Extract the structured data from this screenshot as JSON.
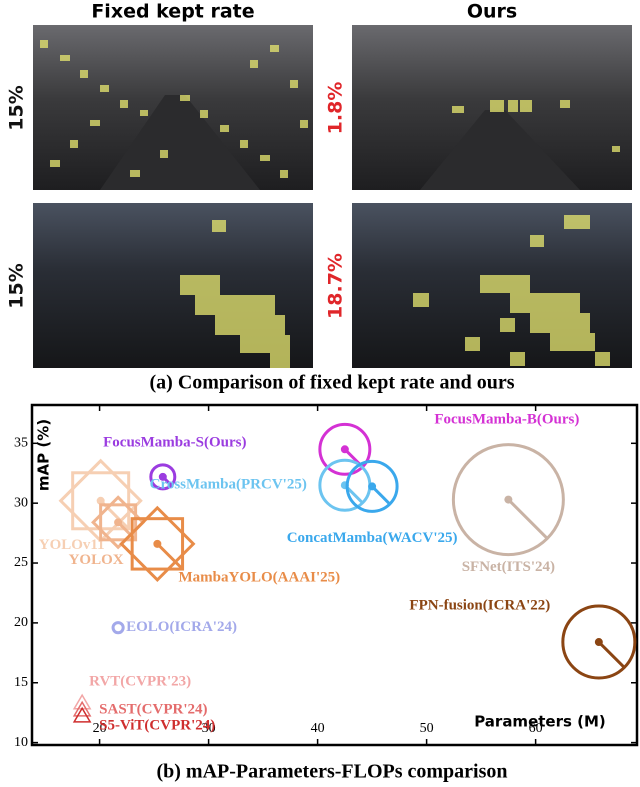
{
  "panel_a": {
    "columns": [
      "Fixed kept rate",
      "Ours"
    ],
    "rows": [
      {
        "rates": [
          "15%",
          "1.8%"
        ]
      },
      {
        "rates": [
          "15%",
          "18.7%"
        ]
      }
    ],
    "caption": "(a) Comparison of fixed kept rate and ours"
  },
  "chart_data": {
    "type": "bubble",
    "caption": "(b) mAP-Parameters-FLOPs comparison",
    "xlabel": "Parameters (M)",
    "ylabel": "mAP (%)",
    "xlim": [
      13.8,
      69.3
    ],
    "ylim": [
      9.8,
      38.2
    ],
    "xticks": [
      20,
      30,
      40,
      50,
      60
    ],
    "yticks": [
      10,
      15,
      20,
      25,
      30,
      35
    ],
    "grid": false,
    "series": [
      {
        "name": "FocusMamba-S(Ours)",
        "color": "#9b3ce0",
        "marker": "o",
        "x": [
          25.8
        ],
        "values": [
          32.2
        ],
        "sizes": [
          9
        ]
      },
      {
        "name": "FocusMamba-B(Ours)",
        "color": "#d431d4",
        "marker": "o",
        "x": [
          42.5
        ],
        "values": [
          34.5
        ],
        "sizes": [
          39
        ]
      },
      {
        "name": "CrossMamba(PRCV'25)",
        "color": "#6cc4f0",
        "marker": "o",
        "x": [
          42.5
        ],
        "values": [
          31.5
        ],
        "sizes": [
          39
        ]
      },
      {
        "name": "ConcatMamba(WACV'25)",
        "color": "#3aa8ec",
        "marker": "o",
        "x": [
          45
        ],
        "values": [
          31.4
        ],
        "sizes": [
          39
        ]
      },
      {
        "name": "SFNet(ITS'24)",
        "color": "#c9b3a5",
        "marker": "o",
        "x": [
          57.5
        ],
        "values": [
          30.3
        ],
        "sizes": [
          189
        ]
      },
      {
        "name": "FPN-fusion(ICRA'22)",
        "color": "#8b4513",
        "marker": "o",
        "x": [
          65.8
        ],
        "values": [
          18.4
        ],
        "sizes": [
          81
        ]
      },
      {
        "name": "YOLOv11",
        "color": "#f6cfb3",
        "marker": "D",
        "x": [
          20.1
        ],
        "values": [
          30.2
        ],
        "sizes": [
          100
        ]
      },
      {
        "name": "YOLOX",
        "color": "#f0b48e",
        "marker": "D",
        "x": [
          21.7
        ],
        "values": [
          28.4
        ],
        "sizes": [
          39
        ]
      },
      {
        "name": "MambaYOLO(AAAI'25)",
        "color": "#e88c48",
        "marker": "D",
        "x": [
          25.3
        ],
        "values": [
          26.6
        ],
        "sizes": [
          81
        ]
      },
      {
        "name": "EOLO(ICRA'24)",
        "color": "#a3a9ea",
        "marker": "o",
        "x": [
          21.7
        ],
        "values": [
          19.6
        ],
        "sizes": [
          1.6
        ]
      },
      {
        "name": "RVT(CVPR'23)",
        "color": "#f2a6a6",
        "marker": "^",
        "x": [
          18.4
        ],
        "values": [
          13.3
        ],
        "sizes": [
          4
        ]
      },
      {
        "name": "SAST(CVPR'24)",
        "color": "#e46c6c",
        "marker": "^",
        "x": [
          18.4
        ],
        "values": [
          12.7
        ],
        "sizes": [
          4
        ]
      },
      {
        "name": "S5-ViT(CVPR'24)",
        "color": "#cf2e2e",
        "marker": "^",
        "x": [
          18.4
        ],
        "values": [
          12.2
        ],
        "sizes": [
          4
        ]
      }
    ]
  }
}
